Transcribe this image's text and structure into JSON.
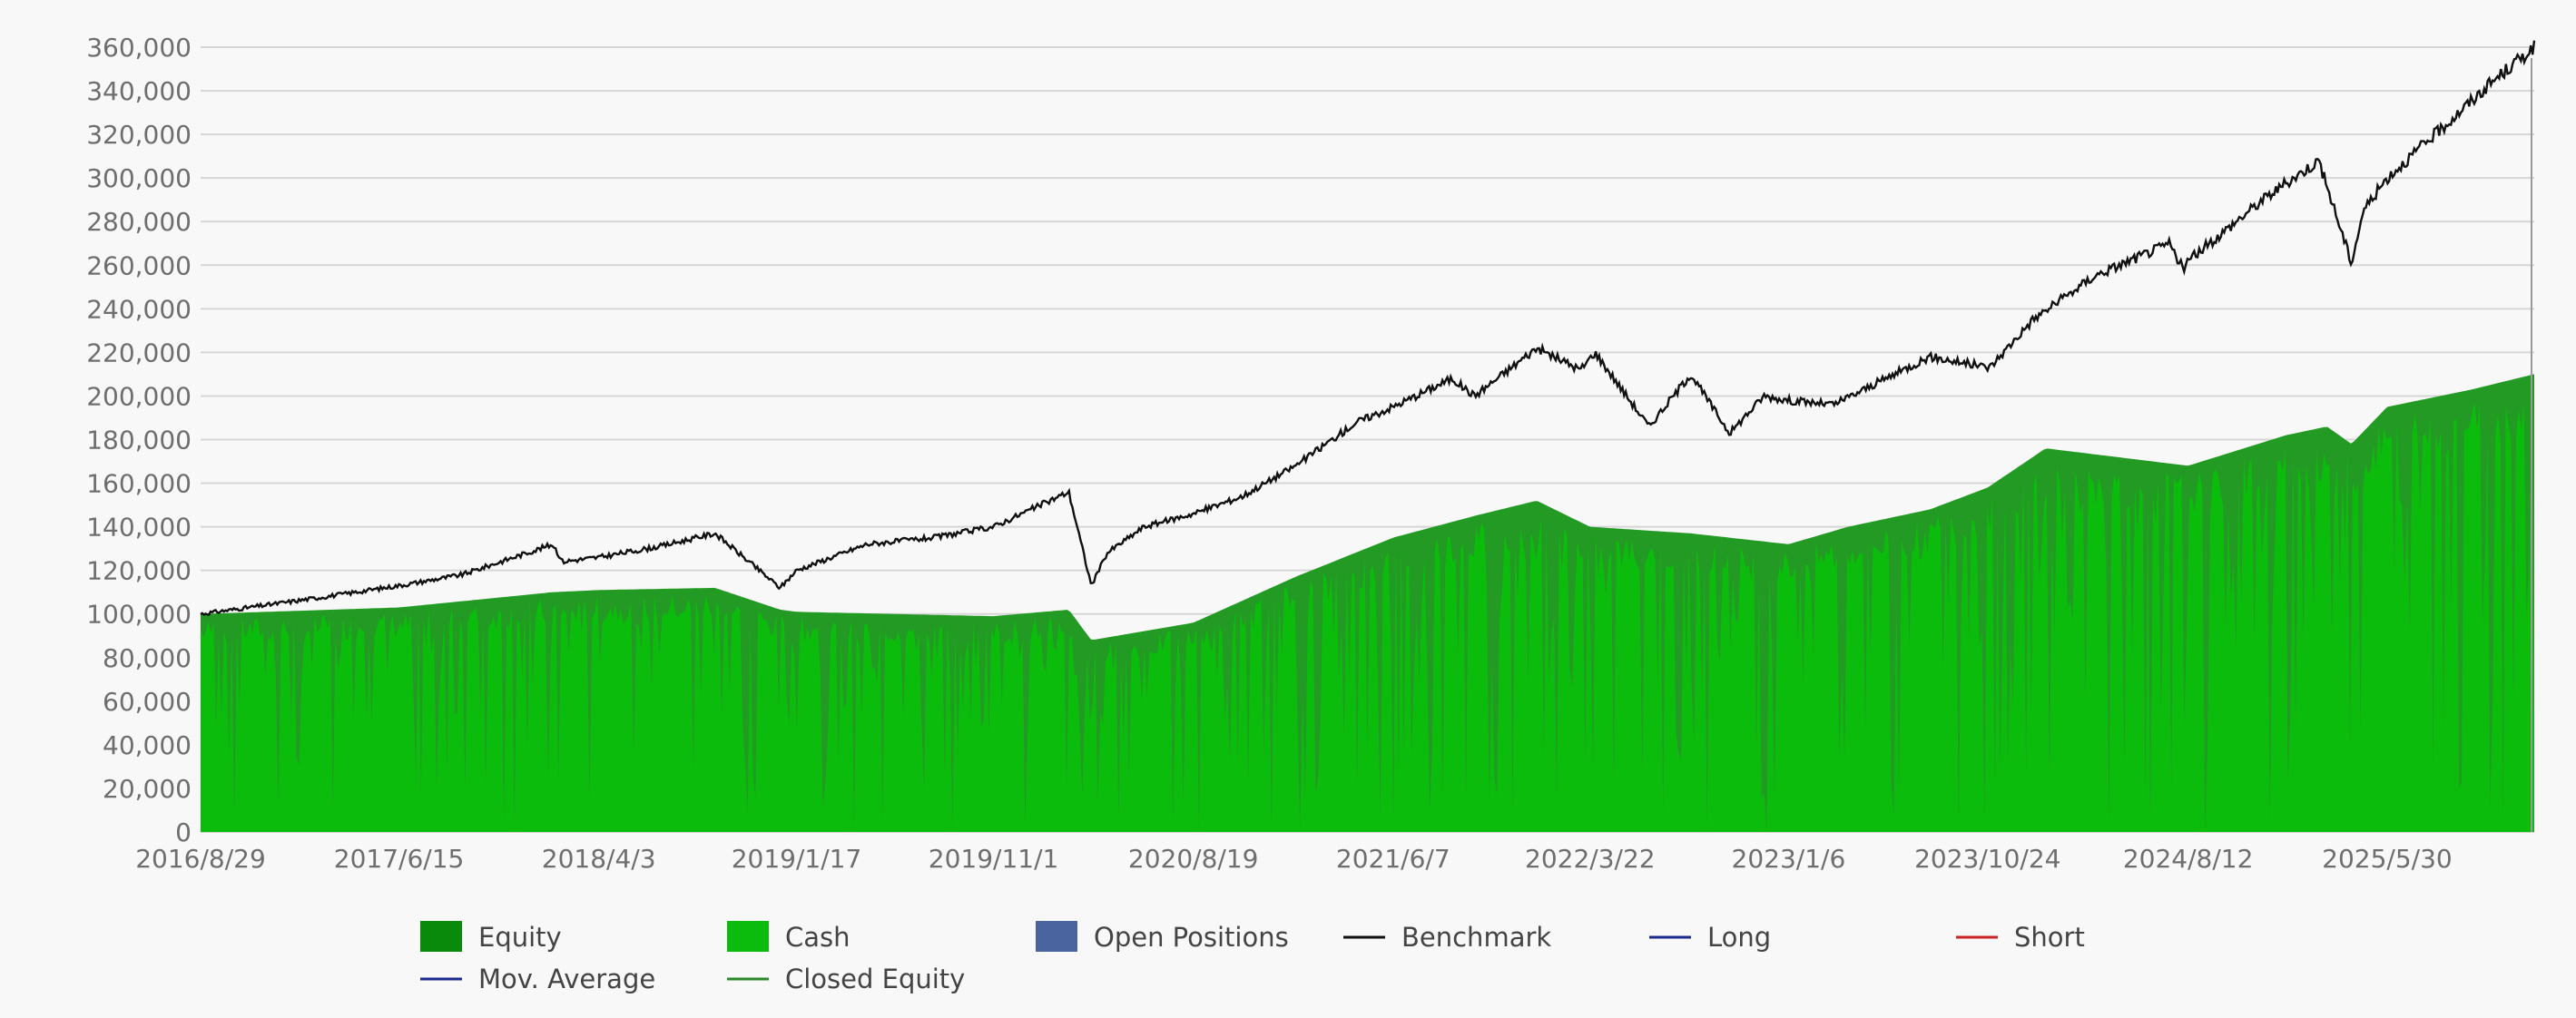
{
  "chart_data": {
    "type": "area",
    "y_ticks": [
      "0",
      "20,000",
      "40,000",
      "60,000",
      "80,000",
      "100,000",
      "120,000",
      "140,000",
      "160,000",
      "180,000",
      "200,000",
      "220,000",
      "240,000",
      "260,000",
      "280,000",
      "300,000",
      "320,000",
      "340,000",
      "360,000"
    ],
    "ylim": [
      0,
      365000
    ],
    "x_ticks": [
      "2016/8/29",
      "2017/6/15",
      "2018/4/3",
      "2019/1/17",
      "2019/11/1",
      "2020/8/19",
      "2021/6/7",
      "2022/3/22",
      "2023/1/6",
      "2023/10/24",
      "2024/8/12",
      "2025/5/30"
    ],
    "xlim": [
      "2016/8/29",
      "2025/12/31"
    ],
    "grid": true,
    "legend_position": "bottom",
    "colors": {
      "equity": "#0a8a0a",
      "equity_area": "#239a23",
      "cash": "#0cbc0c",
      "open_positions": "#4a64a0",
      "benchmark": "#111111",
      "long": "#1a2a8c",
      "short": "#cc2222",
      "mov_average": "#1a2a8c",
      "closed_equity": "#2a8a2a",
      "grid": "#d6d6d6"
    },
    "legend": [
      {
        "label": "Equity",
        "type": "box",
        "color_key": "equity"
      },
      {
        "label": "Cash",
        "type": "box",
        "color_key": "cash"
      },
      {
        "label": "Open Positions",
        "type": "box",
        "color_key": "open_positions"
      },
      {
        "label": "Benchmark",
        "type": "line",
        "color_key": "benchmark"
      },
      {
        "label": "Long",
        "type": "line",
        "color_key": "long"
      },
      {
        "label": "Short",
        "type": "line",
        "color_key": "short"
      },
      {
        "label": "Mov. Average",
        "type": "line",
        "color_key": "mov_average"
      },
      {
        "label": "Closed Equity",
        "type": "line",
        "color_key": "closed_equity"
      }
    ],
    "series": [
      {
        "name": "Benchmark",
        "x": [
          "2016/8/29",
          "2016/12/1",
          "2017/3/1",
          "2017/6/15",
          "2017/9/15",
          "2018/1/26",
          "2018/2/9",
          "2018/4/3",
          "2018/7/1",
          "2018/9/20",
          "2018/12/24",
          "2019/1/17",
          "2019/4/30",
          "2019/8/5",
          "2019/11/1",
          "2020/2/19",
          "2020/3/23",
          "2020/4/15",
          "2020/6/8",
          "2020/8/19",
          "2020/10/30",
          "2021/1/15",
          "2021/4/15",
          "2021/6/7",
          "2021/9/1",
          "2021/10/4",
          "2022/1/3",
          "2022/3/8",
          "2022/3/29",
          "2022/6/16",
          "2022/8/16",
          "2022/10/12",
          "2022/12/1",
          "2023/1/6",
          "2023/3/13",
          "2023/7/31",
          "2023/10/27",
          "2023/12/29",
          "2024/3/28",
          "2024/7/16",
          "2024/8/5",
          "2024/8/12",
          "2024/11/29",
          "2025/2/19",
          "2025/4/8",
          "2025/4/25",
          "2025/5/30",
          "2025/8/1",
          "2025/11/3",
          "2025/12/31"
        ],
        "y": [
          100000,
          104000,
          108000,
          113000,
          118000,
          132000,
          124000,
          126000,
          131000,
          137000,
          112000,
          120000,
          132000,
          135000,
          140000,
          156000,
          113000,
          128000,
          140000,
          146000,
          154000,
          168000,
          188000,
          195000,
          208000,
          200000,
          222000,
          212000,
          220000,
          186000,
          210000,
          183000,
          200000,
          198000,
          196000,
          218000,
          213000,
          235000,
          255000,
          270000,
          258000,
          262000,
          290000,
          308000,
          261000,
          285000,
          300000,
          318000,
          345000,
          360000
        ]
      },
      {
        "name": "Equity",
        "x": [
          "2016/8/29",
          "2017/6/15",
          "2018/1/26",
          "2018/4/3",
          "2018/9/20",
          "2018/12/24",
          "2019/1/17",
          "2019/11/1",
          "2020/2/19",
          "2020/3/23",
          "2020/8/19",
          "2021/1/15",
          "2021/6/7",
          "2021/10/4",
          "2022/1/3",
          "2022/3/22",
          "2022/8/16",
          "2023/1/6",
          "2023/4/3",
          "2023/8/1",
          "2023/10/24",
          "2024/1/17",
          "2024/8/12",
          "2025/1/2",
          "2025/3/3",
          "2025/4/8",
          "2025/5/30",
          "2025/10/1",
          "2025/12/31"
        ],
        "y": [
          100000,
          103000,
          110000,
          111000,
          112000,
          102000,
          101000,
          99000,
          102000,
          88000,
          96000,
          117000,
          135000,
          145000,
          152000,
          140000,
          137000,
          132000,
          140000,
          148000,
          158000,
          176000,
          168000,
          182000,
          186000,
          178000,
          195000,
          203000,
          210000
        ]
      }
    ]
  }
}
